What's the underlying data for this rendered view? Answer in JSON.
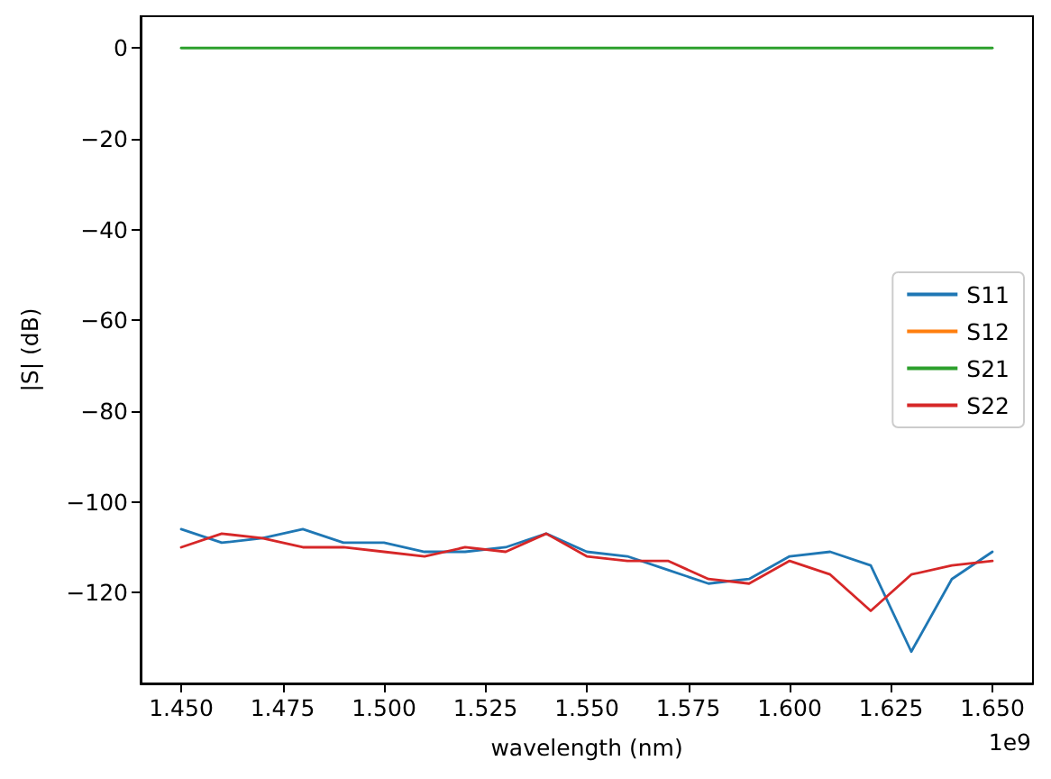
{
  "chart_data": {
    "type": "line",
    "xlabel": "wavelength (nm)",
    "ylabel": "|S| (dB)",
    "annotations": [
      "1e9"
    ],
    "x": [
      1.45,
      1.46,
      1.47,
      1.48,
      1.49,
      1.5,
      1.51,
      1.52,
      1.53,
      1.54,
      1.55,
      1.56,
      1.57,
      1.58,
      1.59,
      1.6,
      1.61,
      1.62,
      1.63,
      1.64,
      1.65
    ],
    "xlim": [
      1.44,
      1.66
    ],
    "ylim": [
      -140,
      7
    ],
    "xticks": [
      {
        "value": 1.45,
        "label": "1.450"
      },
      {
        "value": 1.475,
        "label": "1.475"
      },
      {
        "value": 1.5,
        "label": "1.500"
      },
      {
        "value": 1.525,
        "label": "1.525"
      },
      {
        "value": 1.55,
        "label": "1.550"
      },
      {
        "value": 1.575,
        "label": "1.575"
      },
      {
        "value": 1.6,
        "label": "1.600"
      },
      {
        "value": 1.625,
        "label": "1.625"
      },
      {
        "value": 1.65,
        "label": "1.650"
      }
    ],
    "yticks": [
      {
        "value": -120,
        "label": "−120"
      },
      {
        "value": -100,
        "label": "−100"
      },
      {
        "value": -80,
        "label": "−80"
      },
      {
        "value": -60,
        "label": "−60"
      },
      {
        "value": -40,
        "label": "−40"
      },
      {
        "value": -20,
        "label": "−20"
      },
      0
    ],
    "series": [
      {
        "name": "S11",
        "color": "#1f77b4",
        "values": [
          -106,
          -109,
          -108,
          -106,
          -109,
          -109,
          -111,
          -111,
          -110,
          -107,
          -111,
          -112,
          -115,
          -118,
          -117,
          -112,
          -111,
          -114,
          -133,
          -117,
          -111
        ]
      },
      {
        "name": "S12",
        "color": "#ff7f0e",
        "values": [
          null,
          null,
          null,
          null,
          null,
          null,
          null,
          null,
          null,
          null,
          null,
          null,
          null,
          null,
          null,
          null,
          null,
          null,
          null,
          null,
          null
        ]
      },
      {
        "name": "S21",
        "color": "#2ca02c",
        "values": [
          0,
          0,
          0,
          0,
          0,
          0,
          0,
          0,
          0,
          0,
          0,
          0,
          0,
          0,
          0,
          0,
          0,
          0,
          0,
          0,
          0
        ]
      },
      {
        "name": "S22",
        "color": "#d62728",
        "values": [
          -110,
          -107,
          -108,
          -110,
          -110,
          -111,
          -112,
          -110,
          -111,
          -107,
          -112,
          -113,
          -113,
          -117,
          -118,
          -113,
          -116,
          -124,
          -116,
          -114,
          -113
        ]
      }
    ],
    "legend": "right",
    "grid": false,
    "marker": "none",
    "line_style": "solid"
  }
}
